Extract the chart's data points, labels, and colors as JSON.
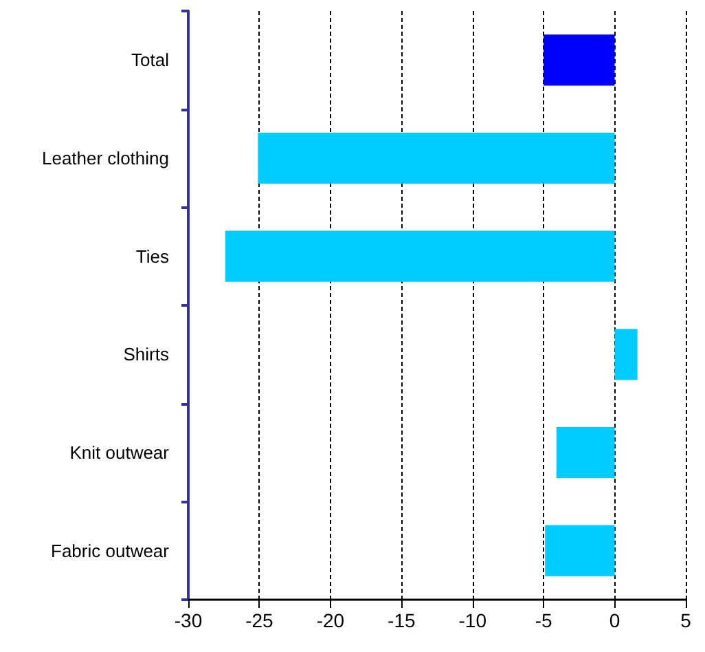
{
  "chart_data": {
    "type": "bar",
    "orientation": "horizontal",
    "categories": [
      "Total",
      "Leather clothing",
      "Ties",
      "Shirts",
      "Knit outwear",
      "Fabric outwear"
    ],
    "values": [
      -5.0,
      -25.1,
      -27.4,
      1.6,
      -4.1,
      -4.9
    ],
    "colors": [
      "#0000ff",
      "#00ccff",
      "#00ccff",
      "#00ccff",
      "#00ccff",
      "#00ccff"
    ],
    "xlim": [
      -30,
      5
    ],
    "xticks": [
      -30,
      -25,
      -20,
      -15,
      -10,
      -5,
      0,
      5
    ],
    "grid": "x"
  }
}
